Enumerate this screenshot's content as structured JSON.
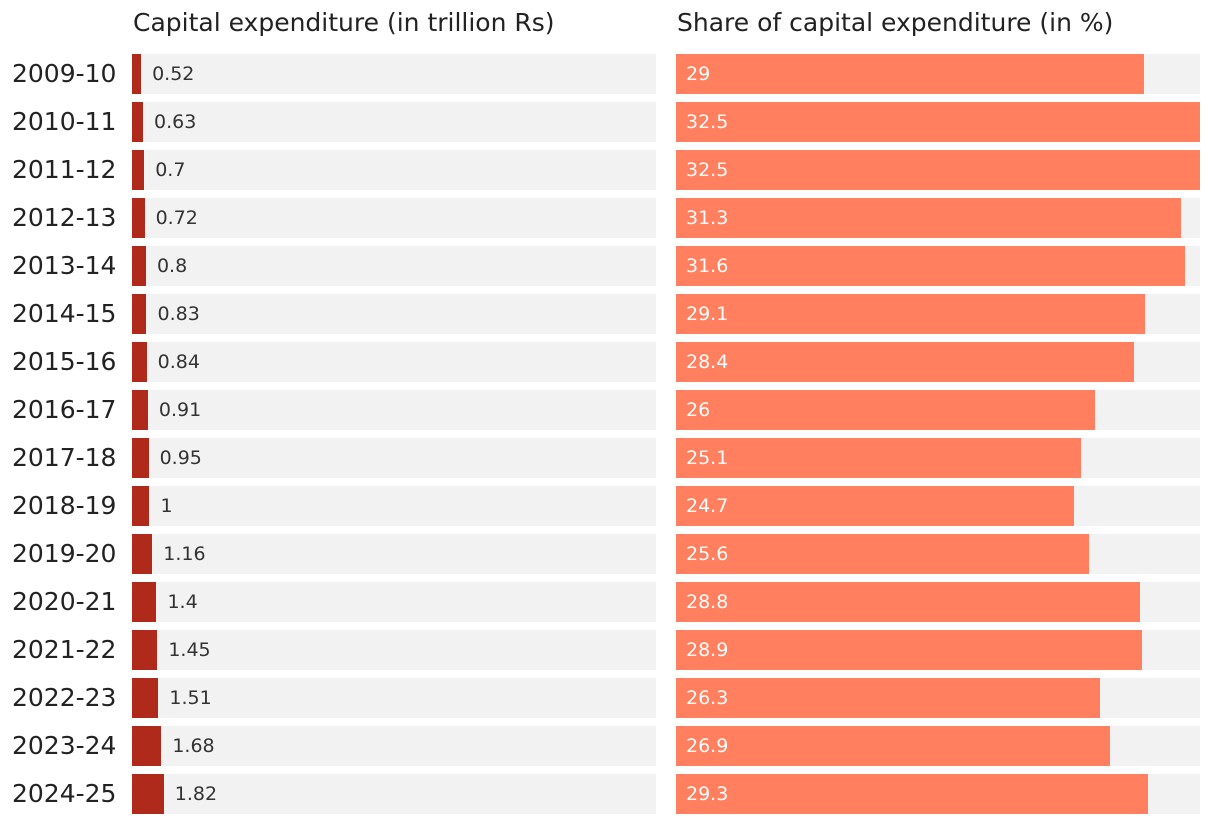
{
  "chart_data": [
    {
      "type": "bar",
      "orientation": "horizontal",
      "title": "Capital expenditure (in trillion Rs)",
      "categories": [
        "2009-10",
        "2010-11",
        "2011-12",
        "2012-13",
        "2013-14",
        "2014-15",
        "2015-16",
        "2016-17",
        "2017-18",
        "2018-19",
        "2019-20",
        "2020-21",
        "2021-22",
        "2022-23",
        "2023-24",
        "2024-25"
      ],
      "values": [
        0.52,
        0.63,
        0.7,
        0.72,
        0.8,
        0.83,
        0.84,
        0.91,
        0.95,
        1,
        1.16,
        1.4,
        1.45,
        1.51,
        1.68,
        1.82
      ],
      "labels": [
        "0.52",
        "0.63",
        "0.7",
        "0.72",
        "0.8",
        "0.83",
        "0.84",
        "0.91",
        "0.95",
        "1",
        "1.16",
        "1.4",
        "1.45",
        "1.51",
        "1.68",
        "1.82"
      ],
      "xlim": [
        0,
        30
      ],
      "color": "#b02a1b"
    },
    {
      "type": "bar",
      "orientation": "horizontal",
      "title": "Share of capital expenditure (in %)",
      "categories": [
        "2009-10",
        "2010-11",
        "2011-12",
        "2012-13",
        "2013-14",
        "2014-15",
        "2015-16",
        "2016-17",
        "2017-18",
        "2018-19",
        "2019-20",
        "2020-21",
        "2021-22",
        "2022-23",
        "2023-24",
        "2024-25"
      ],
      "values": [
        29,
        32.5,
        32.5,
        31.3,
        31.6,
        29.1,
        28.4,
        26,
        25.1,
        24.7,
        25.6,
        28.8,
        28.9,
        26.3,
        26.9,
        29.3
      ],
      "labels": [
        "29",
        "32.5",
        "32.5",
        "31.3",
        "31.6",
        "29.1",
        "28.4",
        "26",
        "25.1",
        "24.7",
        "25.6",
        "28.8",
        "28.9",
        "26.3",
        "26.9",
        "29.3"
      ],
      "xlim": [
        0,
        32.5
      ],
      "color": "#ff7f5e"
    }
  ]
}
